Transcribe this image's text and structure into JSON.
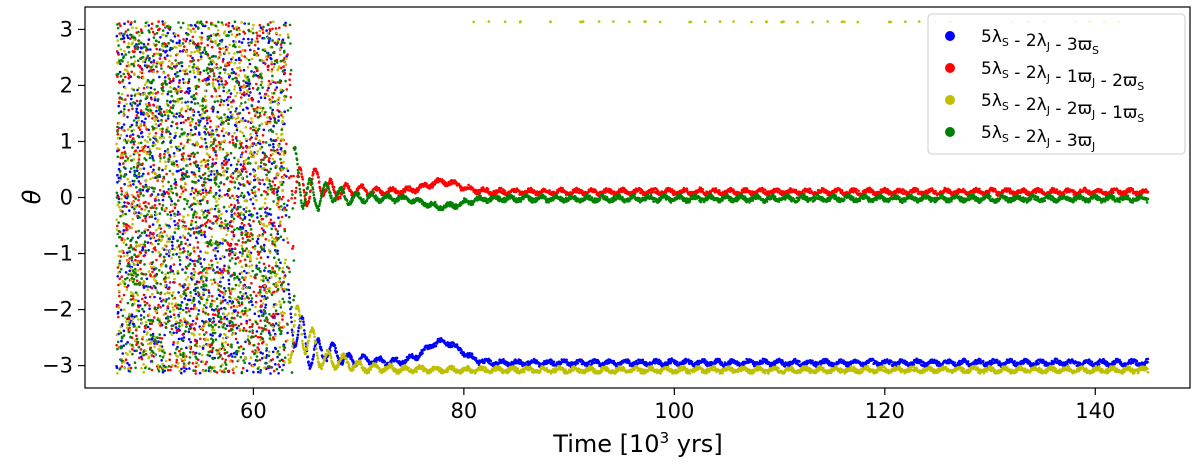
{
  "chart_data": {
    "type": "scatter",
    "xlabel_main": "Time [10",
    "xlabel_exp": "3",
    "xlabel_tail": " yrs]",
    "ylabel": "θ",
    "xlim": [
      44,
      149
    ],
    "ylim": [
      -3.4,
      3.4
    ],
    "x_ticks": [
      60,
      80,
      100,
      120,
      140
    ],
    "y_ticks": [
      3,
      2,
      1,
      0,
      -1,
      -2,
      -3
    ],
    "x_tick_labels": [
      "60",
      "80",
      "100",
      "120",
      "140"
    ],
    "y_tick_labels": [
      "3",
      "2",
      "1",
      "0",
      "−1",
      "−2",
      "−3"
    ],
    "grid": false,
    "legend_position": "top-right",
    "x_range": [
      47,
      145
    ],
    "chaotic_until": 63,
    "series": [
      {
        "name": "5λS - 2λJ - 3ϖS",
        "color": "#0000ff",
        "equilibrium": 3.1416,
        "late_value": -2.95,
        "legend_parts": [
          [
            "5λ",
            ""
          ],
          [
            "S",
            "sub"
          ],
          [
            " - 2λ",
            ""
          ],
          [
            "J",
            "sub"
          ],
          [
            " - 3ϖ",
            ""
          ],
          [
            "S",
            "sub"
          ]
        ]
      },
      {
        "name": "5λS - 2λJ - 1ϖJ - 2ϖS",
        "color": "#ff0000",
        "equilibrium": 0,
        "late_value": 0.1,
        "legend_parts": [
          [
            "5λ",
            ""
          ],
          [
            "S",
            "sub"
          ],
          [
            " - 2λ",
            ""
          ],
          [
            "J",
            "sub"
          ],
          [
            " - 1ϖ",
            ""
          ],
          [
            "J",
            "sub"
          ],
          [
            "  - 2ϖ",
            ""
          ],
          [
            "S",
            "sub"
          ]
        ]
      },
      {
        "name": "5λS - 2λJ - 2ϖJ - 1ϖS",
        "color": "#bfbf00",
        "equilibrium": 3.1416,
        "late_value": -3.08,
        "legend_parts": [
          [
            "5λ",
            ""
          ],
          [
            "S",
            "sub"
          ],
          [
            " - 2λ",
            ""
          ],
          [
            "J",
            "sub"
          ],
          [
            " - 2ϖ",
            ""
          ],
          [
            "J",
            "sub"
          ],
          [
            "  - 1ϖ",
            ""
          ],
          [
            "S",
            "sub"
          ]
        ]
      },
      {
        "name": "5λS - 2λJ - 3ϖJ",
        "color": "#008000",
        "equilibrium": 0,
        "late_value": -0.02,
        "legend_parts": [
          [
            "5λ",
            ""
          ],
          [
            "S",
            "sub"
          ],
          [
            " - 2λ",
            ""
          ],
          [
            "J",
            "sub"
          ],
          [
            " - 3ϖ",
            ""
          ],
          [
            "J",
            "sub"
          ]
        ]
      }
    ]
  }
}
